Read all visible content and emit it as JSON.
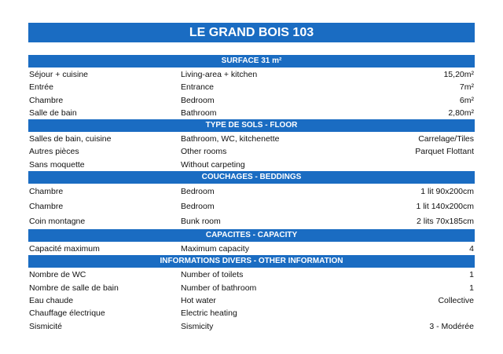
{
  "title": "LE GRAND BOIS 103",
  "sections": [
    {
      "header": "SURFACE 31 m²",
      "rows": [
        [
          "Séjour + cuisine",
          "Living-area + kitchen",
          "15,20m²"
        ],
        [
          "Entrée",
          "Entrance",
          "7m²"
        ],
        [
          "Chambre",
          "Bedroom",
          "6m²"
        ],
        [
          "Salle de bain",
          "Bathroom",
          "2,80m²"
        ]
      ]
    },
    {
      "header": "TYPE DE SOLS - FLOOR",
      "rows": [
        [
          "Salles de bain, cuisine",
          "Bathroom, WC, kitchenette",
          "Carrelage/Tiles"
        ],
        [
          "Autres pièces",
          "Other rooms",
          "Parquet Flottant"
        ],
        [
          "Sans moquette",
          "Without carpeting",
          ""
        ]
      ]
    },
    {
      "header": "COUCHAGES - BEDDINGS",
      "rows": [
        [
          "Chambre",
          "Bedroom",
          "1 lit 90x200cm"
        ],
        [
          "Chambre",
          "Bedroom",
          "1 lit 140x200cm"
        ],
        [
          "Coin montagne",
          "Bunk room",
          "2 lits 70x185cm"
        ]
      ]
    },
    {
      "header": "CAPACITES - CAPACITY",
      "rows": [
        [
          "Capacité maximum",
          "Maximum capacity",
          "4"
        ]
      ]
    },
    {
      "header": "INFORMATIONS DIVERS - OTHER INFORMATION",
      "rows": [
        [
          "Nombre de WC",
          "Number of toilets",
          "1"
        ],
        [
          "Nombre de salle de bain",
          "Number of bathroom",
          "1"
        ],
        [
          "Eau chaude",
          "Hot water",
          "Collective"
        ],
        [
          "Chauffage électrique",
          "Electric heating",
          ""
        ],
        [
          "Sismicité",
          "Sismicity",
          "3 - Modérée"
        ]
      ]
    }
  ],
  "colors": {
    "header_blue": "#1a6cc2"
  }
}
